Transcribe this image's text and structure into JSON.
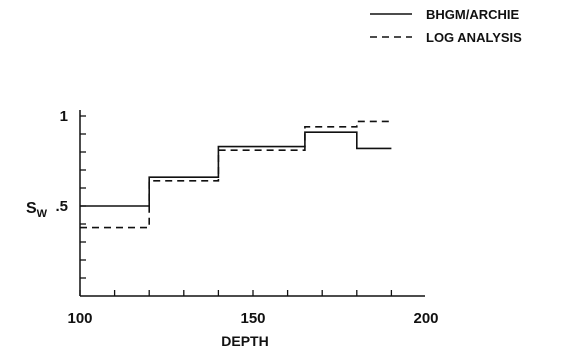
{
  "chart_data": {
    "type": "line",
    "style": "step",
    "title": "",
    "xlabel": "DEPTH",
    "ylabel_main": "S",
    "ylabel_sub": "W",
    "xlim": [
      100,
      200
    ],
    "ylim": [
      0,
      1
    ],
    "xticks": [
      {
        "value": 100,
        "label": "100"
      },
      {
        "value": 150,
        "label": "150"
      },
      {
        "value": 200,
        "label": "200"
      }
    ],
    "yticks": [
      {
        "value": 0.5,
        "label": ".5"
      },
      {
        "value": 1,
        "label": "1"
      }
    ],
    "grid": false,
    "legend_position": "top-right",
    "series": [
      {
        "name": "BHGM/ARCHIE",
        "line_style": "solid",
        "color": "#111111",
        "x": [
          100,
          120,
          140,
          165,
          180,
          190
        ],
        "y": [
          0.5,
          0.66,
          0.83,
          0.91,
          0.82,
          0.82
        ]
      },
      {
        "name": "LOG ANALYSIS",
        "line_style": "dashed",
        "color": "#111111",
        "x": [
          100,
          120,
          140,
          165,
          180,
          190
        ],
        "y": [
          0.38,
          0.64,
          0.81,
          0.94,
          0.97,
          0.97
        ]
      }
    ]
  }
}
